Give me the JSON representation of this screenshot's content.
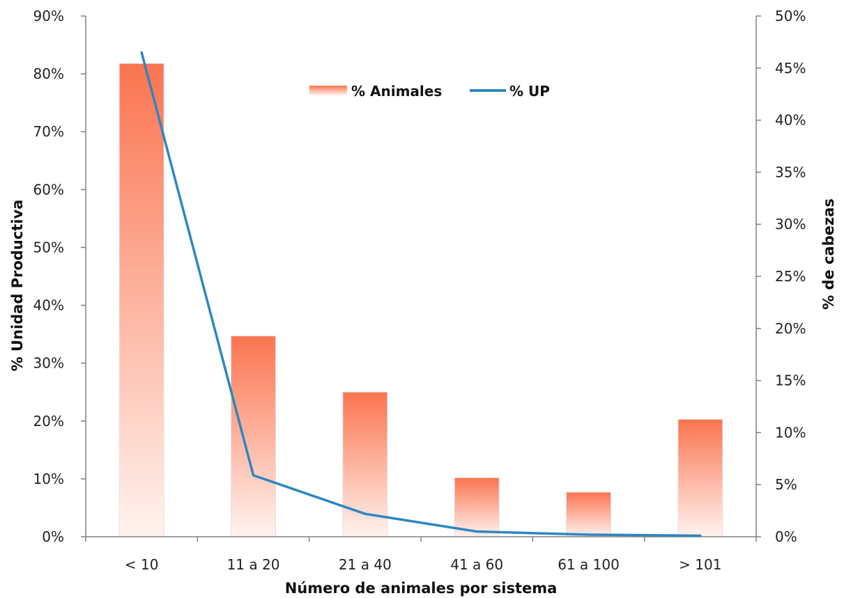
{
  "chart_data": {
    "type": "bar",
    "categories": [
      "< 10",
      "11 a 20",
      "21 a 40",
      "41 a 60",
      "61 a 100",
      "> 101"
    ],
    "series": [
      {
        "name": "% Animales",
        "kind": "bar",
        "axis": "left",
        "values": [
          81.8,
          34.7,
          25.0,
          10.2,
          7.7,
          20.3
        ]
      },
      {
        "name": "% UP",
        "kind": "line",
        "axis": "right",
        "values": [
          46.5,
          5.9,
          2.2,
          0.5,
          0.2,
          0.1
        ]
      }
    ],
    "xlabel": "Número de animales por sistema",
    "ylabel": "% Unidad Productiva",
    "y2label": "% de cabezas",
    "ylim": [
      0,
      90
    ],
    "y2lim": [
      0,
      50
    ],
    "yticks": [
      "0%",
      "10%",
      "20%",
      "30%",
      "40%",
      "50%",
      "60%",
      "70%",
      "80%",
      "90%"
    ],
    "y2ticks": [
      "0%",
      "5%",
      "10%",
      "15%",
      "20%",
      "25%",
      "30%",
      "35%",
      "40%",
      "45%",
      "50%"
    ],
    "legend": "top-center",
    "grid": false,
    "colors": {
      "bar_top": "#fb7450",
      "bar_bottom": "#fff3ef",
      "line": "#2e86c1",
      "axis": "#808080"
    }
  }
}
